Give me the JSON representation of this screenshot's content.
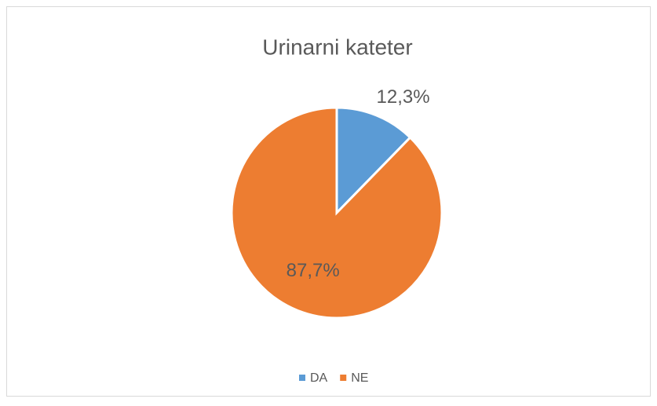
{
  "chart_data": {
    "type": "pie",
    "title": "Urinarni kateter",
    "categories": [
      "DA",
      "NE"
    ],
    "values": [
      12.3,
      87.7
    ],
    "value_labels": [
      "12,3%",
      "87,7%"
    ],
    "colors": [
      "#5b9bd5",
      "#ed7d31"
    ],
    "legend": "bottom"
  }
}
